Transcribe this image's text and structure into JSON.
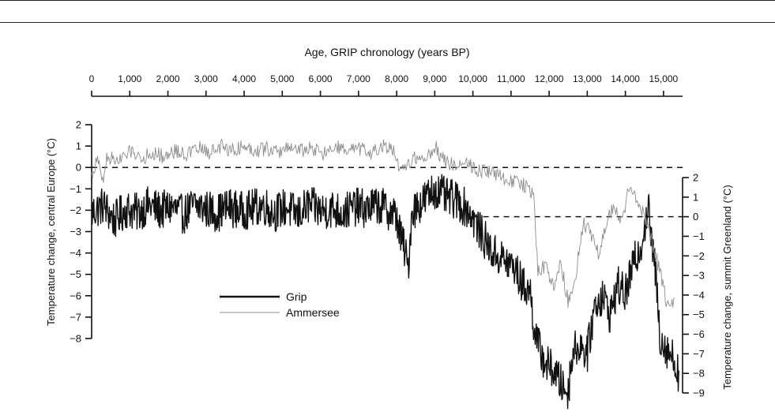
{
  "chart_data": {
    "type": "line",
    "title": "",
    "top_axis": {
      "label": "Age, GRIP chronology (years BP)",
      "range": [
        0,
        15500
      ],
      "ticks": [
        0,
        1000,
        2000,
        3000,
        4000,
        5000,
        6000,
        7000,
        8000,
        9000,
        10000,
        11000,
        12000,
        13000,
        14000,
        15000
      ],
      "tick_labels": [
        "0",
        "1,000",
        "2,000",
        "3,000",
        "4,000",
        "5,000",
        "6,000",
        "7,000",
        "8,000",
        "9,000",
        "10,000",
        "11,000",
        "12,000",
        "13,000",
        "14,000",
        "15,000"
      ]
    },
    "left_axis": {
      "label": "Temperature change, central Europe (°C)",
      "range": [
        -8,
        2
      ],
      "ticks": [
        2,
        1,
        0,
        -1,
        -2,
        -3,
        -4,
        -5,
        -6,
        -7,
        -8
      ],
      "tick_labels": [
        "2",
        "1",
        "0",
        "−1",
        "−2",
        "−3",
        "−4",
        "−5",
        "−6",
        "−7",
        "−8"
      ]
    },
    "right_axis": {
      "label": "Temperature change, summit Greenland (°C)",
      "range": [
        -9,
        2
      ],
      "ticks": [
        2,
        1,
        0,
        -1,
        -2,
        -3,
        -4,
        -5,
        -6,
        -7,
        -8,
        -9
      ],
      "tick_labels": [
        "2",
        "1",
        "0",
        "−1",
        "−2",
        "−3",
        "−4",
        "−5",
        "−6",
        "−7",
        "−8",
        "−9"
      ]
    },
    "reference_lines": [
      {
        "axis": "left",
        "value": 0,
        "style": "dashed",
        "x_range": [
          0,
          15500
        ]
      },
      {
        "axis": "right",
        "value": 0,
        "style": "dashed",
        "x_range": [
          10000,
          15500
        ]
      }
    ],
    "legend": {
      "placement": "lower-left",
      "entries": [
        {
          "label": "Grip",
          "color": "#111111",
          "width": "thick"
        },
        {
          "label": "Ammersee",
          "color": "#8c8c8c",
          "width": "thin"
        }
      ]
    },
    "series": [
      {
        "name": "Grip",
        "axis": "right",
        "color": "#111111",
        "x": [
          0,
          300,
          600,
          900,
          1200,
          1500,
          1800,
          2100,
          2400,
          2700,
          3000,
          3300,
          3600,
          3900,
          4200,
          4500,
          4800,
          5100,
          5400,
          5700,
          6000,
          6300,
          6600,
          6900,
          7200,
          7500,
          7800,
          8000,
          8100,
          8200,
          8300,
          8400,
          8700,
          9000,
          9300,
          9600,
          9900,
          10200,
          10500,
          10800,
          11100,
          11300,
          11500,
          11600,
          11700,
          11900,
          12100,
          12300,
          12500,
          12600,
          12800,
          13000,
          13200,
          13400,
          13600,
          13800,
          14000,
          14200,
          14400,
          14500,
          14600,
          14700,
          14800,
          14900,
          15000,
          15200,
          15400
        ],
        "y": [
          0.2,
          0.6,
          -0.2,
          0.4,
          0.2,
          0.6,
          0.3,
          0.5,
          0.1,
          0.6,
          0.4,
          0.2,
          0.5,
          0.3,
          0.4,
          0.6,
          0.2,
          0.5,
          0.1,
          0.6,
          0.3,
          0.4,
          0.2,
          0.5,
          0.4,
          0.6,
          0.3,
          0.0,
          -1.0,
          -1.6,
          -2.7,
          0.3,
          0.8,
          1.4,
          1.0,
          0.8,
          0.3,
          -0.8,
          -1.8,
          -2.2,
          -2.6,
          -3.5,
          -3.8,
          -5.5,
          -6.5,
          -7.5,
          -7.8,
          -8.5,
          -9.0,
          -7.0,
          -6.5,
          -7.0,
          -4.5,
          -4.0,
          -5.0,
          -3.5,
          -4.0,
          -2.5,
          -1.5,
          -0.5,
          0.5,
          -1.5,
          -3.0,
          -6.0,
          -6.5,
          -7.0,
          -8.0
        ]
      },
      {
        "name": "Ammersee",
        "axis": "left",
        "color": "#8c8c8c",
        "x": [
          0,
          150,
          300,
          400,
          750,
          900,
          1100,
          1300,
          1600,
          1900,
          2200,
          2500,
          2800,
          3100,
          3400,
          3700,
          4000,
          4300,
          4600,
          4900,
          5200,
          5500,
          5800,
          6100,
          6400,
          6700,
          7000,
          7300,
          7600,
          7900,
          8100,
          8300,
          8500,
          8700,
          9000,
          9200,
          9500,
          9800,
          10100,
          10400,
          10700,
          11000,
          11300,
          11600,
          11700,
          11900,
          12100,
          12300,
          12500,
          12700,
          12900,
          13100,
          13300,
          13500,
          13700,
          13900,
          14100,
          14300,
          14500,
          14700,
          14900,
          15100,
          15300
        ],
        "y": [
          -0.4,
          0.4,
          -0.7,
          0.5,
          0.3,
          0.6,
          0.8,
          0.4,
          0.7,
          0.5,
          0.8,
          0.6,
          0.9,
          0.7,
          1.0,
          0.8,
          1.0,
          0.8,
          0.9,
          0.7,
          1.0,
          0.8,
          0.9,
          0.6,
          1.0,
          0.7,
          0.9,
          0.6,
          1.0,
          0.8,
          -0.3,
          0.2,
          0.5,
          0.3,
          1.0,
          0.4,
          0.1,
          0.3,
          -0.1,
          -0.2,
          -0.4,
          -0.6,
          -0.8,
          -1.2,
          -4.8,
          -4.6,
          -5.6,
          -4.4,
          -6.3,
          -5.0,
          -2.5,
          -3.2,
          -4.0,
          -2.6,
          -1.8,
          -2.6,
          -1.0,
          -1.5,
          -2.2,
          -3.6,
          -4.8,
          -6.5,
          -6.2
        ]
      }
    ]
  }
}
